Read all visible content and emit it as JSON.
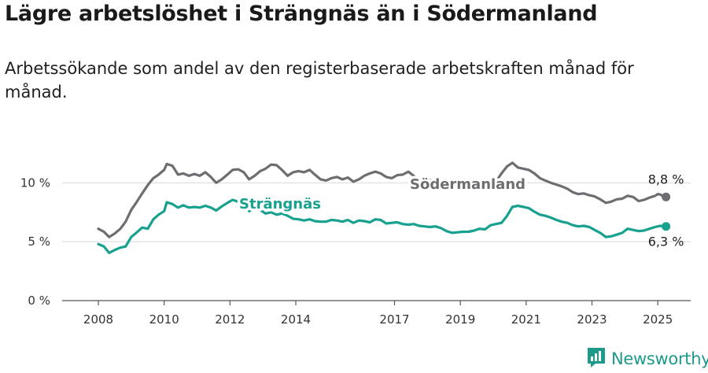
{
  "title": "Lägre arbetslöshet i Strängnäs än i Södermanland",
  "subtitle": "Arbetssökande som andel av den registerbaserade arbetskraften månad för månad.",
  "brand": {
    "name": "Newsworthy",
    "logo_icon": "newsworthy-logo-icon"
  },
  "chart_data": {
    "type": "line",
    "title": "Lägre arbetslöshet i Strängnäs än i Södermanland",
    "subtitle": "Arbetssökande som andel av den registerbaserade arbetskraften månad för månad.",
    "xlabel": "",
    "ylabel": "",
    "x_ticks": [
      {
        "label": "2008",
        "value": 2008.0
      },
      {
        "label": "2010",
        "value": 2010.0
      },
      {
        "label": "2012",
        "value": 2012.0
      },
      {
        "label": "2014",
        "value": 2014.0
      },
      {
        "label": "2017",
        "value": 2017.0
      },
      {
        "label": "2019",
        "value": 2019.0
      },
      {
        "label": "2021",
        "value": 2021.0
      },
      {
        "label": "2023",
        "value": 2023.0
      },
      {
        "label": "2025",
        "value": 2025.0
      }
    ],
    "y_ticks": [
      {
        "label": "0 %",
        "value": 0
      },
      {
        "label": "5 %",
        "value": 5
      },
      {
        "label": "10 %",
        "value": 10
      }
    ],
    "xlim": [
      2006.9,
      2026.0
    ],
    "ylim": [
      0,
      14.5
    ],
    "grid": "horizontal",
    "series": [
      {
        "name": "Södermanland",
        "color": "#6e6e72",
        "end_label": "8,8 %",
        "points": [
          [
            2008.0,
            6.1
          ],
          [
            2008.17,
            5.85
          ],
          [
            2008.33,
            5.4
          ],
          [
            2008.5,
            5.7
          ],
          [
            2008.67,
            6.1
          ],
          [
            2008.83,
            6.7
          ],
          [
            2009.0,
            7.7
          ],
          [
            2009.17,
            8.4
          ],
          [
            2009.33,
            9.1
          ],
          [
            2009.5,
            9.8
          ],
          [
            2009.67,
            10.4
          ],
          [
            2009.83,
            10.7
          ],
          [
            2010.0,
            11.1
          ],
          [
            2010.08,
            11.6
          ],
          [
            2010.25,
            11.45
          ],
          [
            2010.42,
            10.7
          ],
          [
            2010.58,
            10.8
          ],
          [
            2010.75,
            10.6
          ],
          [
            2010.92,
            10.75
          ],
          [
            2011.08,
            10.6
          ],
          [
            2011.25,
            10.9
          ],
          [
            2011.42,
            10.5
          ],
          [
            2011.58,
            10.0
          ],
          [
            2011.75,
            10.3
          ],
          [
            2011.92,
            10.7
          ],
          [
            2012.08,
            11.1
          ],
          [
            2012.25,
            11.15
          ],
          [
            2012.42,
            10.9
          ],
          [
            2012.58,
            10.3
          ],
          [
            2012.75,
            10.6
          ],
          [
            2012.92,
            11.0
          ],
          [
            2013.08,
            11.2
          ],
          [
            2013.25,
            11.55
          ],
          [
            2013.42,
            11.5
          ],
          [
            2013.58,
            11.1
          ],
          [
            2013.75,
            10.6
          ],
          [
            2013.92,
            10.9
          ],
          [
            2014.08,
            11.0
          ],
          [
            2014.25,
            10.9
          ],
          [
            2014.42,
            11.1
          ],
          [
            2014.58,
            10.7
          ],
          [
            2014.75,
            10.3
          ],
          [
            2014.92,
            10.2
          ],
          [
            2015.08,
            10.4
          ],
          [
            2015.25,
            10.5
          ],
          [
            2015.42,
            10.3
          ],
          [
            2015.58,
            10.45
          ],
          [
            2015.75,
            10.1
          ],
          [
            2015.92,
            10.3
          ],
          [
            2016.08,
            10.6
          ],
          [
            2016.25,
            10.8
          ],
          [
            2016.42,
            10.95
          ],
          [
            2016.58,
            10.8
          ],
          [
            2016.75,
            10.5
          ],
          [
            2016.92,
            10.4
          ],
          [
            2017.08,
            10.65
          ],
          [
            2017.25,
            10.7
          ],
          [
            2017.42,
            10.95
          ],
          [
            2017.58,
            10.6
          ],
          [
            2017.75,
            10.2
          ],
          [
            2017.92,
            10.25
          ],
          [
            2018.08,
            10.25
          ],
          [
            2018.25,
            10.2
          ],
          [
            2018.42,
            10.0
          ],
          [
            2018.58,
            9.8
          ],
          [
            2018.75,
            9.6
          ],
          [
            2018.92,
            9.5
          ],
          [
            2019.08,
            9.55
          ],
          [
            2019.25,
            9.55
          ],
          [
            2019.42,
            9.6
          ],
          [
            2019.58,
            9.8
          ],
          [
            2019.75,
            10.0
          ],
          [
            2019.92,
            10.15
          ],
          [
            2020.08,
            10.1
          ],
          [
            2020.25,
            10.8
          ],
          [
            2020.42,
            11.4
          ],
          [
            2020.58,
            11.7
          ],
          [
            2020.75,
            11.3
          ],
          [
            2020.92,
            11.2
          ],
          [
            2021.08,
            11.1
          ],
          [
            2021.25,
            10.8
          ],
          [
            2021.42,
            10.4
          ],
          [
            2021.58,
            10.2
          ],
          [
            2021.75,
            10.0
          ],
          [
            2021.92,
            9.85
          ],
          [
            2022.08,
            9.7
          ],
          [
            2022.25,
            9.5
          ],
          [
            2022.42,
            9.2
          ],
          [
            2022.58,
            9.05
          ],
          [
            2022.75,
            9.1
          ],
          [
            2022.92,
            8.95
          ],
          [
            2023.08,
            8.85
          ],
          [
            2023.25,
            8.6
          ],
          [
            2023.42,
            8.3
          ],
          [
            2023.58,
            8.4
          ],
          [
            2023.75,
            8.6
          ],
          [
            2023.92,
            8.65
          ],
          [
            2024.08,
            8.9
          ],
          [
            2024.25,
            8.8
          ],
          [
            2024.42,
            8.45
          ],
          [
            2024.58,
            8.55
          ],
          [
            2024.75,
            8.75
          ],
          [
            2024.92,
            8.9
          ],
          [
            2025.0,
            9.05
          ],
          [
            2025.08,
            9.0
          ],
          [
            2025.17,
            8.85
          ],
          [
            2025.25,
            8.8
          ]
        ]
      },
      {
        "name": "Strängnäs",
        "color": "#17a18e",
        "end_label": "6,3 %",
        "points": [
          [
            2008.0,
            4.8
          ],
          [
            2008.17,
            4.6
          ],
          [
            2008.33,
            4.05
          ],
          [
            2008.5,
            4.3
          ],
          [
            2008.67,
            4.5
          ],
          [
            2008.83,
            4.6
          ],
          [
            2009.0,
            5.4
          ],
          [
            2009.17,
            5.8
          ],
          [
            2009.33,
            6.2
          ],
          [
            2009.5,
            6.1
          ],
          [
            2009.67,
            6.9
          ],
          [
            2009.83,
            7.3
          ],
          [
            2010.0,
            7.6
          ],
          [
            2010.08,
            8.35
          ],
          [
            2010.25,
            8.2
          ],
          [
            2010.42,
            7.9
          ],
          [
            2010.58,
            8.1
          ],
          [
            2010.75,
            7.9
          ],
          [
            2010.92,
            7.95
          ],
          [
            2011.08,
            7.9
          ],
          [
            2011.25,
            8.05
          ],
          [
            2011.42,
            7.9
          ],
          [
            2011.58,
            7.65
          ],
          [
            2011.75,
            8.0
          ],
          [
            2011.92,
            8.3
          ],
          [
            2012.08,
            8.55
          ],
          [
            2012.25,
            8.4
          ],
          [
            2012.42,
            8.45
          ],
          [
            2012.58,
            7.6
          ],
          [
            2012.75,
            7.85
          ],
          [
            2012.92,
            7.7
          ],
          [
            2013.08,
            7.4
          ],
          [
            2013.25,
            7.5
          ],
          [
            2013.42,
            7.3
          ],
          [
            2013.58,
            7.4
          ],
          [
            2013.75,
            7.2
          ],
          [
            2013.92,
            6.95
          ],
          [
            2014.08,
            6.9
          ],
          [
            2014.25,
            6.8
          ],
          [
            2014.42,
            6.9
          ],
          [
            2014.58,
            6.75
          ],
          [
            2014.75,
            6.7
          ],
          [
            2014.92,
            6.7
          ],
          [
            2015.08,
            6.85
          ],
          [
            2015.25,
            6.8
          ],
          [
            2015.42,
            6.7
          ],
          [
            2015.58,
            6.85
          ],
          [
            2015.75,
            6.6
          ],
          [
            2015.92,
            6.8
          ],
          [
            2016.08,
            6.75
          ],
          [
            2016.25,
            6.65
          ],
          [
            2016.42,
            6.9
          ],
          [
            2016.58,
            6.85
          ],
          [
            2016.75,
            6.55
          ],
          [
            2016.92,
            6.6
          ],
          [
            2017.08,
            6.65
          ],
          [
            2017.25,
            6.5
          ],
          [
            2017.42,
            6.45
          ],
          [
            2017.58,
            6.5
          ],
          [
            2017.75,
            6.35
          ],
          [
            2017.92,
            6.3
          ],
          [
            2018.08,
            6.25
          ],
          [
            2018.25,
            6.3
          ],
          [
            2018.42,
            6.15
          ],
          [
            2018.58,
            5.9
          ],
          [
            2018.75,
            5.75
          ],
          [
            2018.92,
            5.8
          ],
          [
            2019.08,
            5.85
          ],
          [
            2019.25,
            5.85
          ],
          [
            2019.42,
            5.95
          ],
          [
            2019.58,
            6.1
          ],
          [
            2019.75,
            6.05
          ],
          [
            2019.92,
            6.4
          ],
          [
            2020.08,
            6.5
          ],
          [
            2020.25,
            6.6
          ],
          [
            2020.42,
            7.2
          ],
          [
            2020.58,
            7.95
          ],
          [
            2020.75,
            8.05
          ],
          [
            2020.92,
            7.95
          ],
          [
            2021.08,
            7.85
          ],
          [
            2021.25,
            7.55
          ],
          [
            2021.42,
            7.3
          ],
          [
            2021.58,
            7.2
          ],
          [
            2021.75,
            7.05
          ],
          [
            2021.92,
            6.85
          ],
          [
            2022.08,
            6.7
          ],
          [
            2022.25,
            6.6
          ],
          [
            2022.42,
            6.4
          ],
          [
            2022.58,
            6.3
          ],
          [
            2022.75,
            6.35
          ],
          [
            2022.92,
            6.25
          ],
          [
            2023.08,
            6.0
          ],
          [
            2023.25,
            5.75
          ],
          [
            2023.42,
            5.4
          ],
          [
            2023.58,
            5.45
          ],
          [
            2023.75,
            5.6
          ],
          [
            2023.92,
            5.75
          ],
          [
            2024.08,
            6.1
          ],
          [
            2024.25,
            6.0
          ],
          [
            2024.42,
            5.9
          ],
          [
            2024.58,
            5.95
          ],
          [
            2024.75,
            6.1
          ],
          [
            2024.92,
            6.25
          ],
          [
            2025.0,
            6.3
          ],
          [
            2025.08,
            6.35
          ],
          [
            2025.17,
            6.3
          ],
          [
            2025.25,
            6.3
          ]
        ]
      }
    ]
  }
}
